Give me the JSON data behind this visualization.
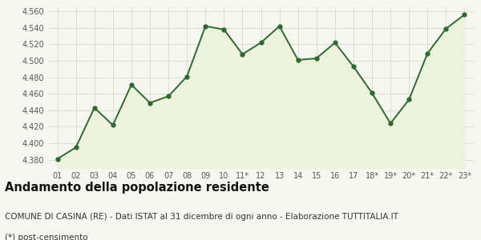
{
  "x_labels": [
    "01",
    "02",
    "03",
    "04",
    "05",
    "06",
    "07",
    "08",
    "09",
    "10",
    "11*",
    "12",
    "13",
    "14",
    "15",
    "16",
    "17",
    "18*",
    "19*",
    "20*",
    "21*",
    "22*",
    "23*"
  ],
  "y_values": [
    4381,
    4395,
    4443,
    4422,
    4471,
    4449,
    4457,
    4481,
    4542,
    4538,
    4508,
    4522,
    4542,
    4501,
    4503,
    4522,
    4493,
    4461,
    4424,
    4453,
    4509,
    4539,
    4556
  ],
  "ylim": [
    4370,
    4565
  ],
  "yticks": [
    4380,
    4400,
    4420,
    4440,
    4460,
    4480,
    4500,
    4520,
    4540,
    4560
  ],
  "line_color": "#2d6a2d",
  "fill_color": "#edf2dc",
  "marker_color": "#2d6a2d",
  "bg_color": "#f7f7f2",
  "plot_bg_color": "#f7f7f2",
  "grid_color": "#d8d8d0",
  "title": "Andamento della popolazione residente",
  "subtitle": "COMUNE DI CASINA (RE) - Dati ISTAT al 31 dicembre di ogni anno - Elaborazione TUTTITALIA.IT",
  "footnote": "(*) post-censimento",
  "title_fontsize": 10.5,
  "subtitle_fontsize": 7.5,
  "footnote_fontsize": 7.5
}
